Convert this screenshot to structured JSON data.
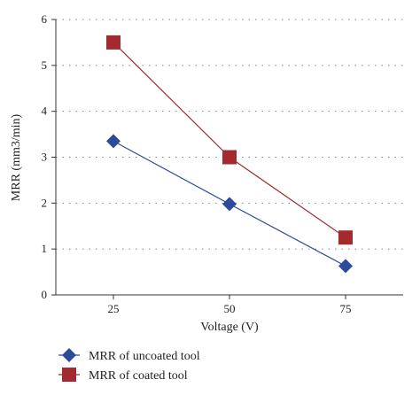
{
  "chart_data": {
    "type": "line",
    "title": "",
    "xlabel": "Voltage (V)",
    "ylabel": "MRR (mm3/min)",
    "categories": [
      "25",
      "50",
      "75"
    ],
    "ylim": [
      0,
      6
    ],
    "yticks": [
      "0",
      "1",
      "2",
      "3",
      "4",
      "5",
      "6"
    ],
    "grid": "horizontal-dotted",
    "legend_position": "bottom-left",
    "series": [
      {
        "name": "MRR of uncoated tool",
        "marker": "diamond",
        "color": "#2e4a9a",
        "values": [
          3.35,
          1.98,
          0.63
        ]
      },
      {
        "name": "MRR of coated tool",
        "marker": "square",
        "color": "#a32a2e",
        "values": [
          5.5,
          3.0,
          1.25
        ]
      }
    ]
  }
}
